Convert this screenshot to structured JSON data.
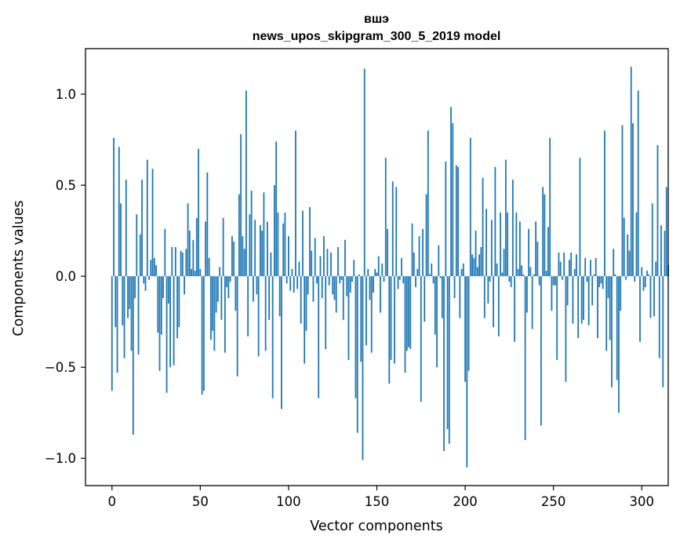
{
  "chart_data": {
    "type": "bar",
    "title_lines": [
      "вшэ",
      "news_upos_skipgram_300_5_2019 model"
    ],
    "xlabel": "Vector components",
    "ylabel": "Components values",
    "xlim": [
      -15,
      315
    ],
    "ylim": [
      -1.15,
      1.25
    ],
    "x_ticks": [
      0,
      50,
      100,
      150,
      200,
      250,
      300
    ],
    "y_ticks": [
      -1.0,
      -0.5,
      0.0,
      0.5,
      1.0
    ],
    "y_tick_labels": [
      "−1.0",
      "−0.5",
      "0.0",
      "0.5",
      "1.0"
    ],
    "bar_color": "#1f77b4",
    "grid": false,
    "x_start": 0,
    "values": [
      -0.63,
      0.76,
      -0.28,
      -0.53,
      0.71,
      0.4,
      -0.27,
      -0.45,
      0.53,
      -0.23,
      -0.18,
      -0.41,
      -0.87,
      -0.12,
      0.34,
      -0.43,
      0.23,
      0.53,
      -0.04,
      -0.08,
      0.64,
      -0.02,
      0.09,
      0.59,
      0.1,
      0.06,
      -0.31,
      -0.52,
      -0.32,
      -0.12,
      0.26,
      -0.64,
      -0.15,
      -0.5,
      0.16,
      -0.49,
      0.16,
      -0.34,
      -0.28,
      0.14,
      0.13,
      -0.1,
      0.15,
      0.4,
      0.25,
      0.04,
      0.2,
      0.03,
      0.32,
      0.7,
      0.04,
      -0.65,
      -0.63,
      0.3,
      0.57,
      0.1,
      -0.35,
      -0.3,
      -0.41,
      -0.2,
      -0.14,
      0.05,
      -0.24,
      0.32,
      -0.42,
      -0.06,
      -0.12,
      -0.03,
      0.22,
      0.19,
      -0.19,
      -0.55,
      0.45,
      0.78,
      0.22,
      0.15,
      1.02,
      -0.33,
      0.34,
      0.47,
      -0.14,
      0.31,
      -0.1,
      -0.44,
      0.28,
      0.25,
      0.46,
      -0.41,
      0.3,
      -0.24,
      0.13,
      -0.67,
      0.5,
      0.74,
      0.35,
      -0.22,
      -0.73,
      0.29,
      0.35,
      -0.04,
      0.22,
      -0.08,
      0.04,
      -0.09,
      0.8,
      -0.07,
      0.08,
      -0.26,
      0.36,
      -0.48,
      -0.3,
      -0.1,
      0.38,
      0.14,
      -0.14,
      0.21,
      -0.04,
      -0.67,
      0.11,
      -0.12,
      0.22,
      -0.4,
      0.15,
      -0.05,
      0.13,
      -0.1,
      -0.13,
      -0.2,
      0.16,
      -0.04,
      -0.02,
      -0.24,
      0.2,
      -0.11,
      -0.46,
      -0.09,
      -0.03,
      0.09,
      -0.67,
      -0.86,
      0.01,
      -0.47,
      -1.01,
      1.14,
      -0.38,
      0.04,
      -0.13,
      -0.42,
      -0.09,
      0.04,
      0.02,
      0.11,
      -0.2,
      0.07,
      -0.03,
      0.65,
      0.26,
      -0.59,
      -0.46,
      0.52,
      -0.48,
      0.49,
      -0.07,
      -0.02,
      0.1,
      -0.04,
      -0.53,
      -0.41,
      -0.39,
      -0.4,
      0.29,
      0.13,
      -0.06,
      0.04,
      0.22,
      -0.69,
      0.26,
      -0.25,
      0.45,
      0.8,
      0.01,
      0.07,
      -0.04,
      -0.32,
      -0.5,
      0.17,
      -0.01,
      -0.23,
      -0.96,
      0.63,
      -0.84,
      -0.92,
      0.93,
      0.84,
      -0.12,
      0.61,
      0.6,
      -0.23,
      0.04,
      0.07,
      -0.58,
      -1.05,
      -0.52,
      0.76,
      0.12,
      0.1,
      0.25,
      0.05,
      0.12,
      0.16,
      0.54,
      -0.23,
      0.37,
      -0.15,
      -0.03,
      0.31,
      -0.28,
      0.6,
      0.07,
      -0.33,
      0.35,
      0.02,
      0.15,
      0.64,
      0.35,
      -0.03,
      -0.06,
      0.53,
      -0.36,
      0.35,
      0.04,
      0.3,
      0.06,
      0.01,
      -0.9,
      -0.2,
      0.26,
      0.05,
      -0.29,
      0.01,
      0.3,
      0.19,
      -0.05,
      -0.82,
      0.49,
      0.45,
      0.03,
      0.27,
      0.76,
      -0.19,
      -0.05,
      -0.05,
      -0.46,
      0.13,
      0.08,
      -0.02,
      0.13,
      -0.58,
      -0.16,
      0.09,
      0.13,
      -0.26,
      0.04,
      0.12,
      -0.34,
      0.65,
      -0.26,
      -0.24,
      0.1,
      -0.03,
      -0.27,
      0.09,
      -0.16,
      0.01,
      0.1,
      -0.34,
      -0.06,
      -0.04,
      -0.07,
      0.8,
      -0.41,
      -0.12,
      -0.35,
      -0.61,
      0.15,
      0.01,
      -0.57,
      -0.75,
      -0.19,
      0.83,
      0.32,
      -0.02,
      0.23,
      0.14,
      1.15,
      0.84,
      -0.03,
      0.35,
      1.02,
      -0.36,
      0.05,
      -0.08,
      -0.06,
      0.03,
      0.01,
      -0.23,
      0.4,
      -0.22,
      0.08,
      0.72,
      -0.45,
      0.28,
      -0.61,
      0.25,
      0.49,
      0.06
    ]
  }
}
